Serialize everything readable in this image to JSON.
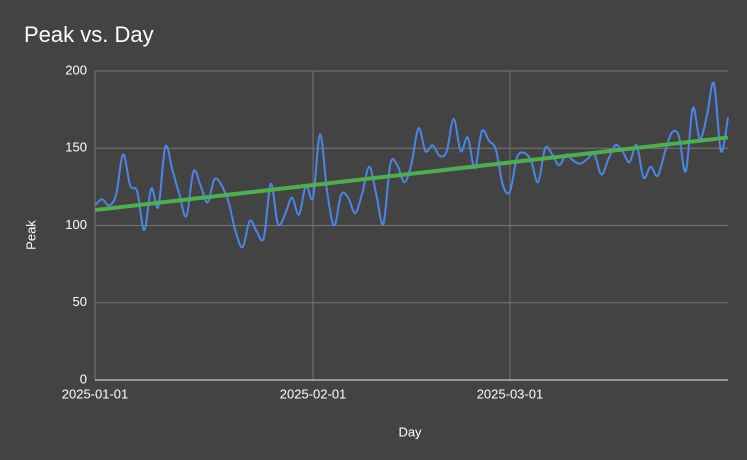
{
  "chart_data": {
    "type": "line",
    "title": "Peak vs. Day",
    "xlabel": "Day",
    "ylabel": "Peak",
    "x": [
      "2025-01-01",
      "2025-01-02",
      "2025-01-03",
      "2025-01-04",
      "2025-01-05",
      "2025-01-06",
      "2025-01-07",
      "2025-01-08",
      "2025-01-09",
      "2025-01-10",
      "2025-01-11",
      "2025-01-12",
      "2025-01-13",
      "2025-01-14",
      "2025-01-15",
      "2025-01-16",
      "2025-01-17",
      "2025-01-18",
      "2025-01-19",
      "2025-01-20",
      "2025-01-21",
      "2025-01-22",
      "2025-01-23",
      "2025-01-24",
      "2025-01-25",
      "2025-01-26",
      "2025-01-27",
      "2025-01-28",
      "2025-01-29",
      "2025-01-30",
      "2025-01-31",
      "2025-02-01",
      "2025-02-02",
      "2025-02-03",
      "2025-02-04",
      "2025-02-05",
      "2025-02-06",
      "2025-02-07",
      "2025-02-08",
      "2025-02-09",
      "2025-02-10",
      "2025-02-11",
      "2025-02-12",
      "2025-02-13",
      "2025-02-14",
      "2025-02-15",
      "2025-02-16",
      "2025-02-17",
      "2025-02-18",
      "2025-02-19",
      "2025-02-20",
      "2025-02-21",
      "2025-02-22",
      "2025-02-23",
      "2025-02-24",
      "2025-02-25",
      "2025-02-26",
      "2025-02-27",
      "2025-02-28",
      "2025-03-01",
      "2025-03-02",
      "2025-03-03",
      "2025-03-04",
      "2025-03-05",
      "2025-03-06",
      "2025-03-07",
      "2025-03-08",
      "2025-03-09",
      "2025-03-10",
      "2025-03-11",
      "2025-03-12",
      "2025-03-13",
      "2025-03-14",
      "2025-03-15",
      "2025-03-16",
      "2025-03-17",
      "2025-03-18",
      "2025-03-19",
      "2025-03-20",
      "2025-03-21",
      "2025-03-22",
      "2025-03-23",
      "2025-03-24",
      "2025-03-25",
      "2025-03-26",
      "2025-03-27",
      "2025-03-28",
      "2025-03-29",
      "2025-03-30",
      "2025-03-31",
      "2025-04-01"
    ],
    "series": [
      {
        "name": "Peak",
        "color": "#4a86e8",
        "values": [
          113,
          117,
          113,
          120,
          146,
          126,
          122,
          97,
          124,
          112,
          151,
          136,
          120,
          106,
          135,
          126,
          115,
          130,
          126,
          115,
          96,
          86,
          103,
          96,
          92,
          127,
          101,
          107,
          118,
          107,
          126,
          118,
          159,
          122,
          100,
          120,
          118,
          108,
          121,
          138,
          120,
          101,
          140,
          139,
          128,
          140,
          163,
          148,
          152,
          145,
          148,
          169,
          148,
          157,
          137,
          161,
          155,
          149,
          126,
          122,
          144,
          147,
          142,
          128,
          150,
          146,
          139,
          146,
          142,
          140,
          143,
          146,
          133,
          143,
          152,
          148,
          141,
          152,
          131,
          138,
          132,
          147,
          160,
          158,
          135,
          176,
          156,
          171,
          192,
          148,
          170
        ]
      }
    ],
    "trendline": {
      "color": "#4caf50",
      "values": [
        110,
        157
      ]
    },
    "xlim": [
      "2025-01-01",
      "2025-04-01"
    ],
    "xticks": [
      "2025-01-01",
      "2025-02-01",
      "2025-03-01"
    ],
    "ylim": [
      0,
      200
    ],
    "yticks": [
      0,
      50,
      100,
      150,
      200
    ],
    "grid": true
  }
}
